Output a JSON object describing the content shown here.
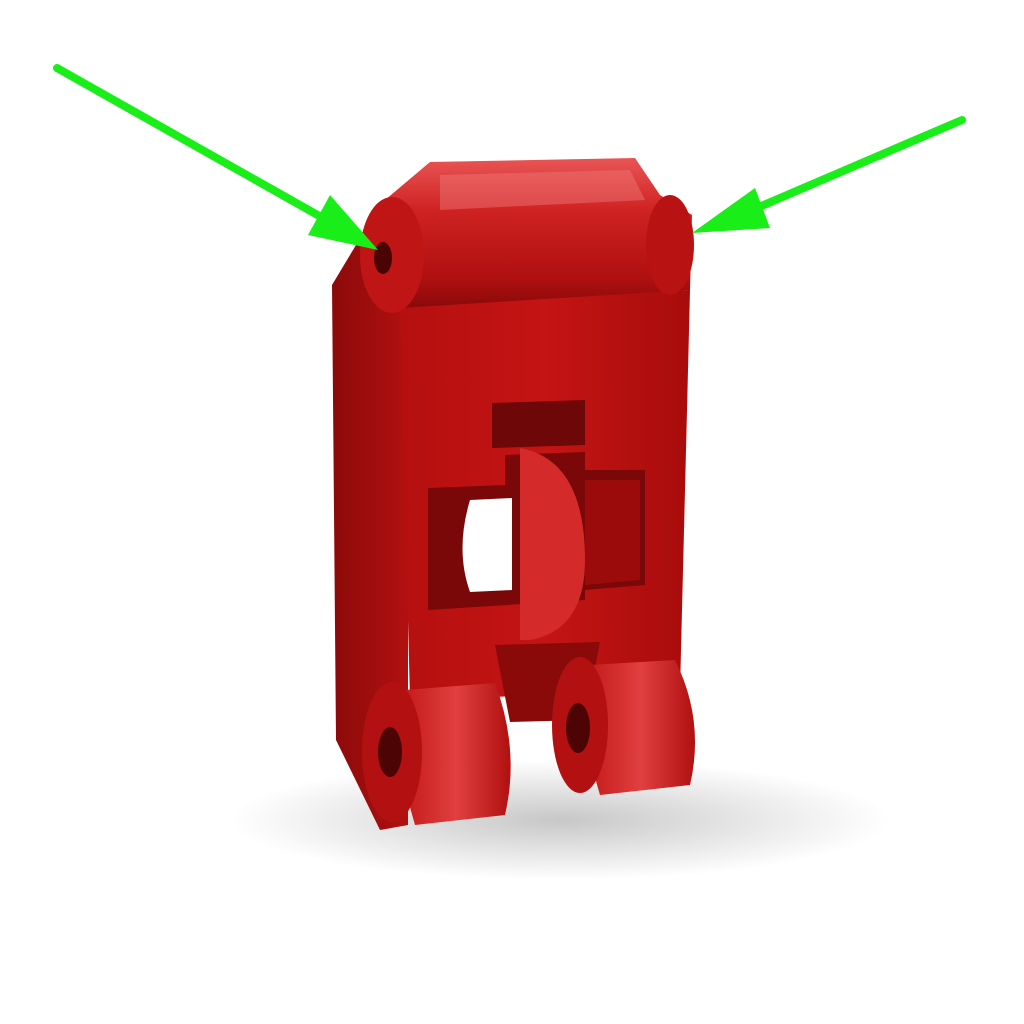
{
  "scene": {
    "subject": "red-3d-printed-bracket",
    "background_color": "#ffffff",
    "part_color": "#c41616",
    "part_highlight_color": "#e04848",
    "part_shadow_color": "#6e0808",
    "arrow_color": "#19ee19",
    "arrow_count": 2
  }
}
